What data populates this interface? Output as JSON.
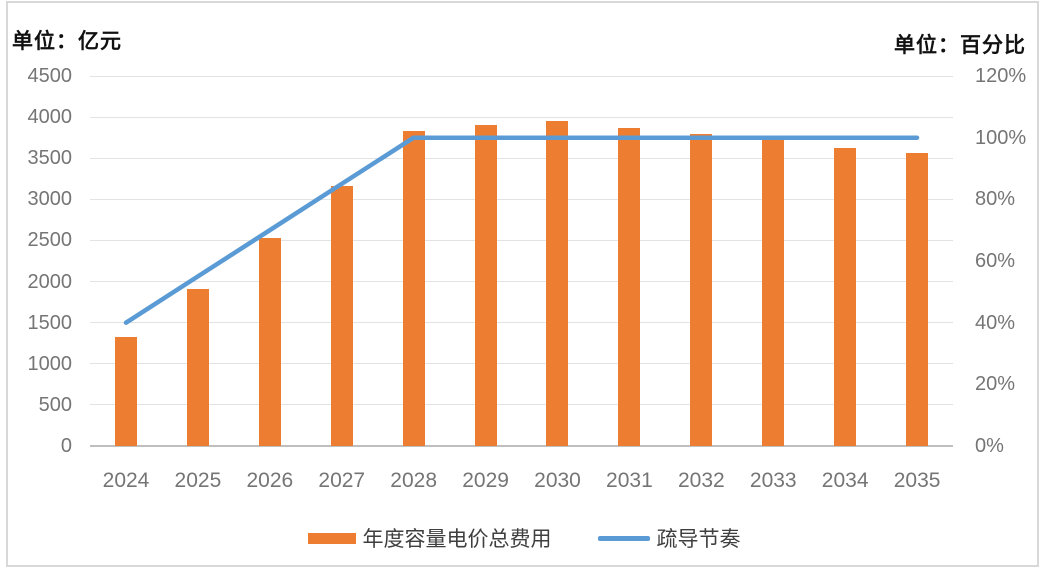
{
  "chart_data": {
    "type": "bar",
    "combo": "bar+line",
    "categories": [
      "2024",
      "2025",
      "2026",
      "2027",
      "2028",
      "2029",
      "2030",
      "2031",
      "2032",
      "2033",
      "2034",
      "2035"
    ],
    "series": [
      {
        "name": "年度容量电价总费用",
        "type": "bar",
        "axis": "left",
        "color": "#ED7D31",
        "values": [
          1320,
          1910,
          2530,
          3160,
          3830,
          3905,
          3955,
          3870,
          3795,
          3720,
          3620,
          3560
        ]
      },
      {
        "name": "疏导节奏",
        "type": "line",
        "axis": "right",
        "color": "#5B9BD5",
        "values": [
          40,
          55,
          70,
          85,
          100,
          100,
          100,
          100,
          100,
          100,
          100,
          100
        ]
      }
    ],
    "left_axis": {
      "title": "单位：亿元",
      "min": 0,
      "max": 4500,
      "step": 500,
      "tick_labels": [
        "4500",
        "4000",
        "3500",
        "3000",
        "2500",
        "2000",
        "1500",
        "1000",
        "500",
        "0"
      ]
    },
    "right_axis": {
      "title": "单位：百分比",
      "min": 0,
      "max": 120,
      "step": 20,
      "tick_labels": [
        "120%",
        "100%",
        "80%",
        "60%",
        "40%",
        "20%",
        "0%"
      ]
    },
    "grid": "horizontal",
    "legend_position": "bottom"
  },
  "legend": {
    "items": [
      {
        "label": "年度容量电价总费用",
        "color": "#ED7D31",
        "shape": "bar"
      },
      {
        "label": "疏导节奏",
        "color": "#5B9BD5",
        "shape": "line"
      }
    ]
  },
  "colors": {
    "bar": "#ED7D31",
    "line": "#5B9BD5",
    "gridline": "#e3e3e3",
    "axis_line": "#bfbfbf",
    "tick_text": "#757575",
    "legend_text": "#3f3f3f",
    "frame_border": "#d8d8d8"
  }
}
